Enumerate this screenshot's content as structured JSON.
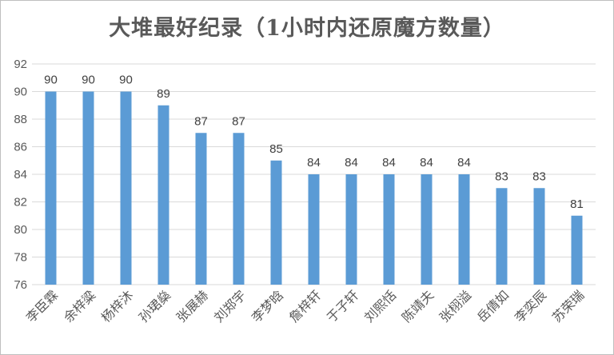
{
  "chart_data": {
    "type": "bar",
    "title": "大堆最好纪录（1小时内还原魔方数量）",
    "categories": [
      "李臣霖",
      "余梓粱",
      "杨梓沐",
      "孙珺燊",
      "张展赫",
      "刘郑宇",
      "李梦晗",
      "詹梓轩",
      "于子轩",
      "刘熙恬",
      "陈靖夫",
      "张栩溢",
      "岳倩如",
      "李奕辰",
      "苏荣瑞"
    ],
    "values": [
      90,
      90,
      90,
      89,
      87,
      87,
      85,
      84,
      84,
      84,
      84,
      84,
      83,
      83,
      81
    ],
    "ylim": [
      76,
      92
    ],
    "yticks": [
      76,
      78,
      80,
      82,
      84,
      86,
      88,
      90,
      92
    ],
    "xlabel": "",
    "ylabel": "",
    "grid": true,
    "legend": "none",
    "bar_color": "#5b9bd5",
    "grid_color": "#d9d9d9"
  }
}
